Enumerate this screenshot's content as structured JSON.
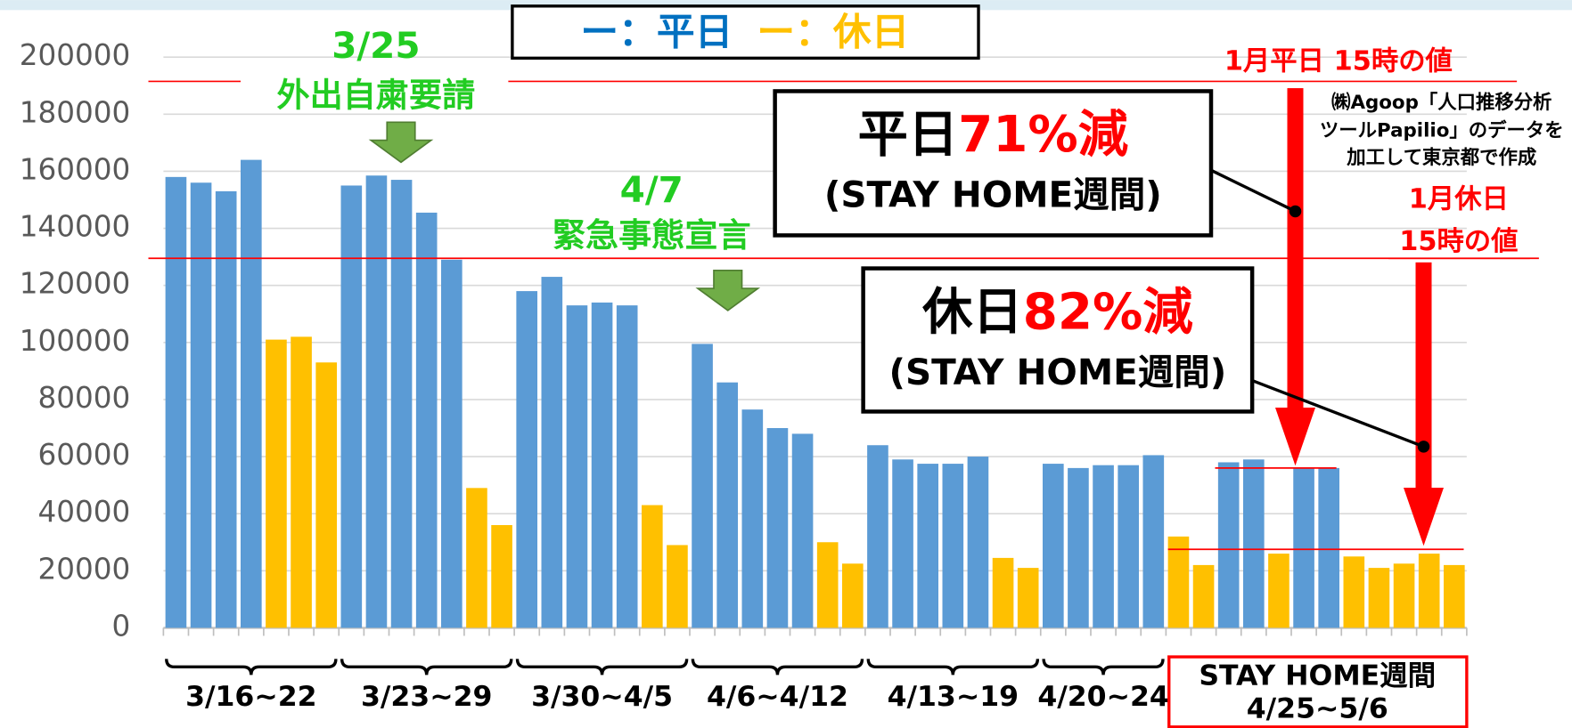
{
  "chart_data": {
    "type": "bar",
    "categories": [
      null,
      null,
      null,
      null,
      null,
      null,
      null,
      null,
      null,
      null,
      null,
      null,
      null,
      null,
      null,
      null,
      null,
      null,
      null,
      null,
      null,
      null,
      null,
      null,
      null,
      null,
      null,
      null,
      null,
      null,
      null,
      null,
      null,
      null,
      null,
      null,
      null,
      null,
      null,
      null,
      null,
      null,
      null,
      null,
      null,
      null,
      null,
      null,
      null,
      null,
      null,
      null
    ],
    "series": [
      {
        "name": "ー：平日",
        "color": "#5b9bd5",
        "values": [
          158000,
          156000,
          153000,
          164000,
          null,
          null,
          null,
          155000,
          158500,
          157000,
          145500,
          129000,
          null,
          null,
          118000,
          123000,
          113000,
          114000,
          113000,
          null,
          null,
          99500,
          86000,
          76500,
          70000,
          68000,
          null,
          null,
          64000,
          59000,
          57500,
          57500,
          60000,
          null,
          null,
          57500,
          56000,
          57000,
          57000,
          60500,
          null,
          null,
          58000,
          59000,
          null,
          56000,
          56000,
          null,
          null,
          null,
          null,
          null
        ]
      },
      {
        "name": "ー：休日",
        "color": "#ffc000",
        "values": [
          null,
          null,
          null,
          null,
          101000,
          102000,
          93000,
          null,
          null,
          null,
          null,
          null,
          49000,
          36000,
          null,
          null,
          null,
          null,
          null,
          43000,
          29000,
          null,
          null,
          null,
          null,
          null,
          30000,
          22500,
          null,
          null,
          null,
          null,
          null,
          24500,
          21000,
          null,
          null,
          null,
          null,
          null,
          32000,
          22000,
          null,
          null,
          26000,
          null,
          null,
          25000,
          21000,
          22500,
          26000,
          22000
        ]
      }
    ],
    "ylim": [
      0,
      200000
    ],
    "yticks": [
      0,
      20000,
      40000,
      60000,
      80000,
      100000,
      120000,
      140000,
      160000,
      180000,
      200000
    ],
    "grid": true,
    "reference_lines": [
      {
        "value": 191500,
        "label": [
          "1月平日 15時の値"
        ]
      },
      {
        "value": 129500,
        "label": [
          "1月休日",
          "15時の値"
        ]
      },
      {
        "value": 56000
      },
      {
        "value": 27500
      }
    ],
    "events": [
      {
        "lines": [
          "3/25",
          "外出自粛要請"
        ]
      },
      {
        "lines": [
          "4/7",
          "緊急事態宣言"
        ]
      }
    ],
    "callouts": [
      {
        "label": "平日",
        "change": "71%減",
        "note": "(STAY HOME週間)"
      },
      {
        "label": "休日",
        "change": "82%減",
        "note": "(STAY HOME週間)"
      }
    ],
    "source": [
      "㈱Agoop「人口推移分析",
      "ツールPapilio」のデータを",
      "加工して東京都で作成"
    ],
    "week_labels": [
      "3/16~22",
      "3/23~29",
      "3/30~4/5",
      "4/6~4/12",
      "4/13~19",
      "4/20~24"
    ],
    "stay_home_label": [
      "STAY HOME週間",
      "4/25~5/6"
    ]
  }
}
